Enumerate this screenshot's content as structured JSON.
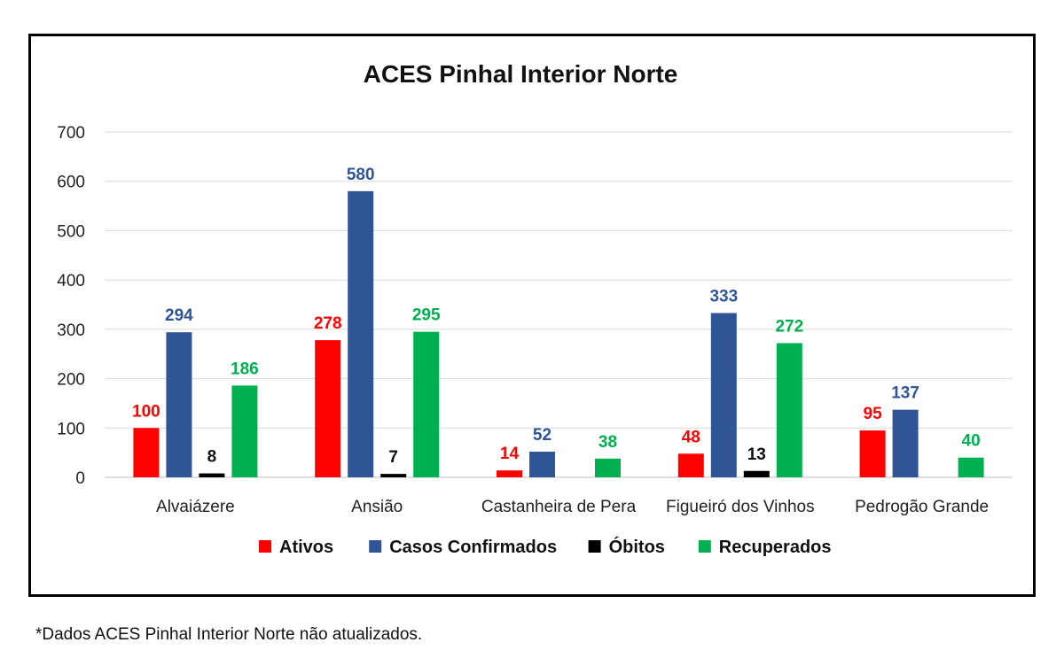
{
  "chart_data": {
    "type": "bar",
    "title": "ACES Pinhal Interior Norte",
    "categories": [
      "Alvaiázere",
      "Ansião",
      "Castanheira de Pera",
      "Figueiró dos Vinhos",
      "Pedrogão Grande"
    ],
    "series": [
      {
        "name": "Ativos",
        "color": "#ff0000",
        "values": [
          100,
          278,
          14,
          48,
          95
        ]
      },
      {
        "name": "Casos Confirmados",
        "color": "#2f5597",
        "values": [
          294,
          580,
          52,
          333,
          137
        ]
      },
      {
        "name": "Óbitos",
        "color": "#000000",
        "values": [
          8,
          7,
          null,
          13,
          null
        ]
      },
      {
        "name": "Recuperados",
        "color": "#00b050",
        "values": [
          186,
          295,
          38,
          272,
          40
        ]
      }
    ],
    "ylim": [
      0,
      700
    ],
    "yticks": [
      0,
      100,
      200,
      300,
      400,
      500,
      600,
      700
    ],
    "grid": true,
    "legend": "bottom"
  },
  "footnote": "*Dados ACES Pinhal Interior Norte não atualizados."
}
